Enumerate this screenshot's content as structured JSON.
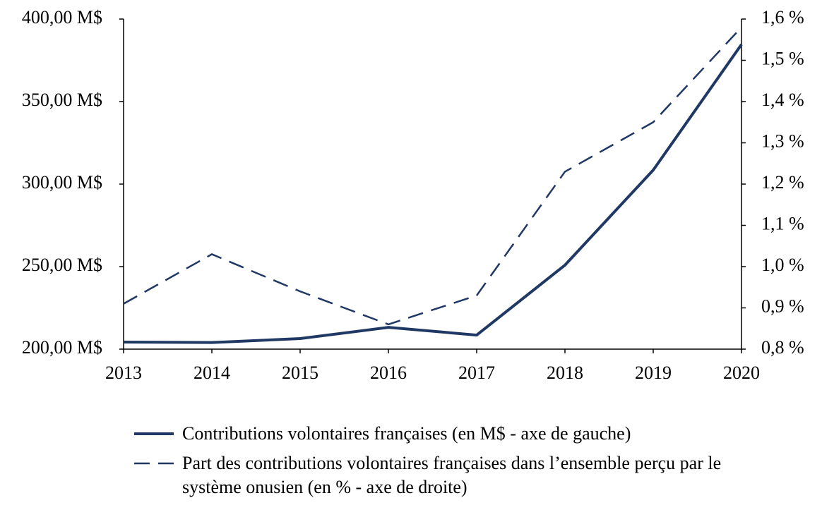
{
  "chart_data": {
    "type": "line",
    "x": [
      2013,
      2014,
      2015,
      2016,
      2017,
      2018,
      2019,
      2020
    ],
    "xlim": [
      2013,
      2020
    ],
    "xticks": [
      2013,
      2014,
      2015,
      2016,
      2017,
      2018,
      2019,
      2020
    ],
    "ylim": [
      200,
      400
    ],
    "yticks": [
      {
        "value": 200,
        "label": "200,00 M$"
      },
      {
        "value": 250,
        "label": "250,00 M$"
      },
      {
        "value": 300,
        "label": "300,00 M$"
      },
      {
        "value": 350,
        "label": "350,00 M$"
      },
      {
        "value": 400,
        "label": "400,00 M$"
      }
    ],
    "y2lim": [
      0.8,
      1.6
    ],
    "y2ticks": [
      {
        "value": 0.8,
        "label": "0,8 %"
      },
      {
        "value": 0.9,
        "label": "0,9 %"
      },
      {
        "value": 1.0,
        "label": "1,0 %"
      },
      {
        "value": 1.1,
        "label": "1,1 %"
      },
      {
        "value": 1.2,
        "label": "1,2 %"
      },
      {
        "value": 1.3,
        "label": "1,3 %"
      },
      {
        "value": 1.4,
        "label": "1,4 %"
      },
      {
        "value": 1.5,
        "label": "1,5 %"
      },
      {
        "value": 1.6,
        "label": "1,6 %"
      }
    ],
    "series": [
      {
        "name": "Contributions volontaires françaises (en M$ - axe de gauche)",
        "color": "#203864",
        "dash": "solid",
        "values": [
          204.3,
          204,
          206.4,
          213.2,
          208.5,
          250.9,
          308.5,
          384.6
        ]
      },
      {
        "name": "Part des contributions volontaires françaises dans l’ensemble perçu par le système onusien (en % - axe de droite)",
        "color": "#203864",
        "dash": "dashed",
        "axis": "y2",
        "values": [
          0.91,
          1.03,
          0.94,
          0.86,
          0.93,
          1.23,
          1.35,
          1.58
        ]
      }
    ]
  }
}
